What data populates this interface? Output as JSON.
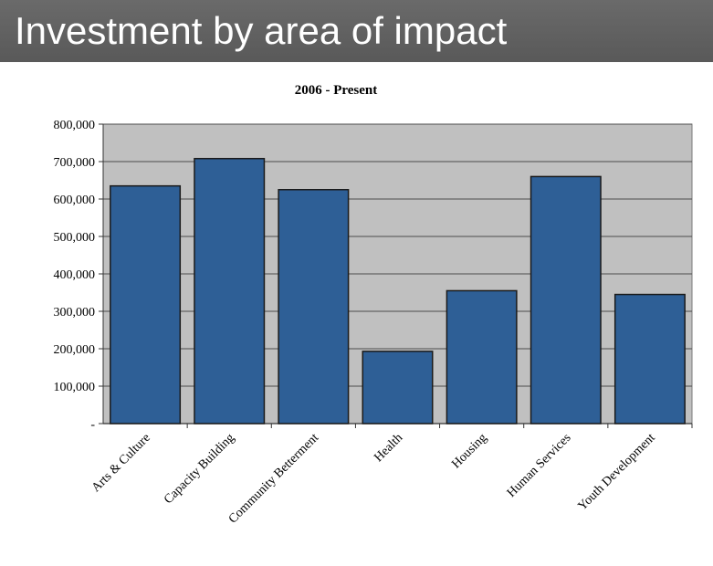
{
  "slide": {
    "title": "Investment by area of impact"
  },
  "chart_data": {
    "type": "bar",
    "title": "2006 - Present",
    "xlabel": "",
    "ylabel": "",
    "categories": [
      "Arts & Culture",
      "Capacity Building",
      "Community Betterment",
      "Health",
      "Housing",
      "Human Services",
      "Youth Development"
    ],
    "values": [
      635000,
      708000,
      625000,
      193000,
      355000,
      660000,
      345000
    ],
    "ylim": [
      0,
      800000
    ],
    "yticks": [
      0,
      100000,
      200000,
      300000,
      400000,
      500000,
      600000,
      700000,
      800000
    ],
    "ytick_labels": [
      "-",
      "100,000",
      "200,000",
      "300,000",
      "400,000",
      "500,000",
      "600,000",
      "700,000",
      "800,000"
    ],
    "grid": true,
    "legend": "none",
    "colors": {
      "bar": "#2e5f96",
      "bar_edge": "#1a1a1a",
      "plot_background": "#c0c0c0",
      "gridline": "#4d4d4d"
    }
  }
}
